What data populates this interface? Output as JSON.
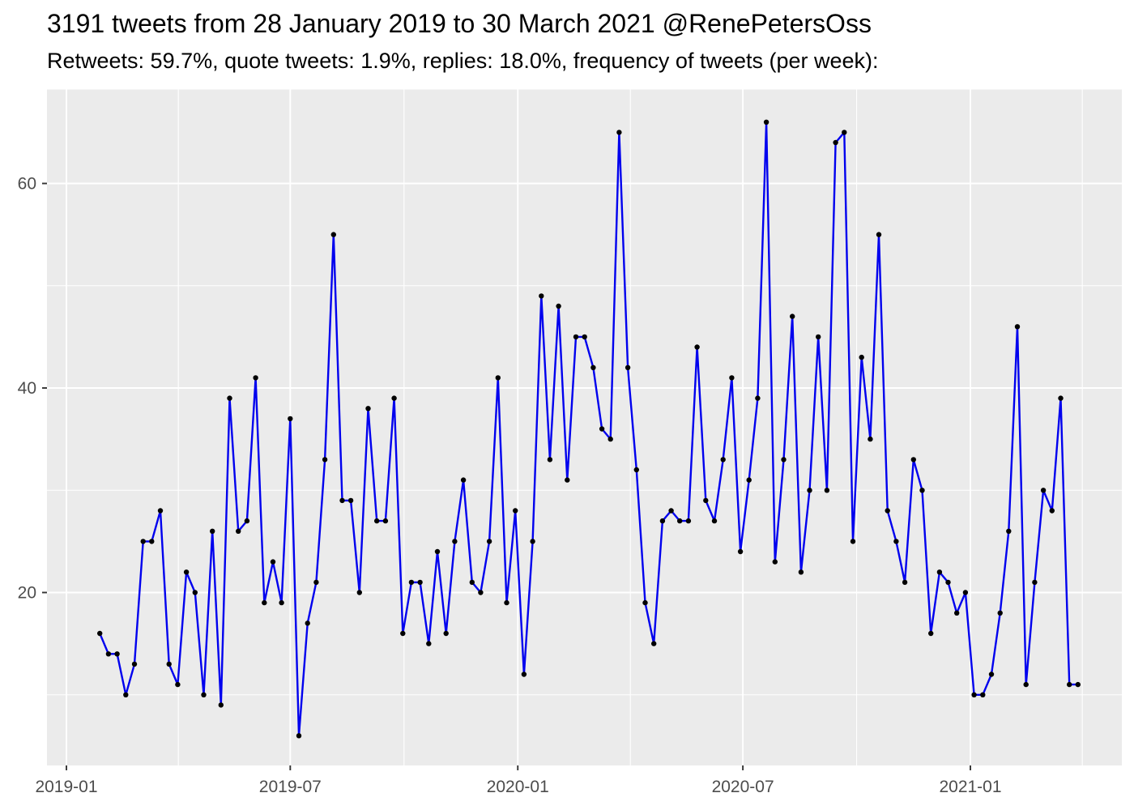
{
  "header": {
    "title": "3191 tweets from 28 January 2019 to 30 March 2021 @RenePetersOss",
    "subtitle": "Retweets: 59.7%, quote tweets: 1.9%, replies: 18.0%, frequency of tweets (per week):"
  },
  "chart_data": {
    "type": "line",
    "title": "3191 tweets from 28 January 2019 to 30 March 2021 @RenePetersOss",
    "subtitle": "Retweets: 59.7%, quote tweets: 1.9%, replies: 18.0%, frequency of tweets (per week):",
    "xlabel": "",
    "ylabel": "",
    "legend": "none",
    "grid": true,
    "series": [
      {
        "name": "tweets-per-week",
        "start_date": "2019-01-28",
        "end_date": "2021-03-29",
        "interval_days": 7,
        "values": [
          16,
          14,
          14,
          10,
          13,
          25,
          25,
          28,
          13,
          11,
          22,
          20,
          10,
          26,
          9,
          39,
          26,
          27,
          41,
          19,
          23,
          19,
          37,
          6,
          17,
          21,
          33,
          55,
          29,
          29,
          20,
          38,
          27,
          27,
          39,
          16,
          21,
          21,
          15,
          24,
          16,
          25,
          31,
          21,
          20,
          25,
          41,
          19,
          28,
          12,
          25,
          49,
          33,
          48,
          31,
          45,
          45,
          42,
          36,
          35,
          65,
          42,
          32,
          19,
          15,
          27,
          28,
          27,
          27,
          44,
          29,
          27,
          33,
          41,
          24,
          31,
          39,
          66,
          23,
          33,
          47,
          22,
          30,
          45,
          30,
          64,
          65,
          25,
          43,
          35,
          55,
          28,
          25,
          21,
          33,
          30,
          16,
          22,
          21,
          18,
          20,
          10,
          10,
          12,
          18,
          26,
          46,
          11,
          21,
          30,
          28,
          39,
          11,
          11
        ]
      }
    ],
    "x_axis": {
      "tick_labels": [
        "2019-01",
        "2019-07",
        "2020-01",
        "2020-07",
        "2021-01"
      ],
      "tick_days_from_2019_01_01": [
        0,
        181,
        365,
        547,
        731
      ],
      "minor_gridline_days": [
        90.5,
        273,
        456,
        639,
        821.5
      ]
    },
    "y_axis": {
      "tick_labels": [
        "20",
        "40",
        "60"
      ],
      "tick_values": [
        20,
        40,
        60
      ],
      "minor_gridline_values": [
        10,
        30,
        50
      ],
      "visible_range": [
        3,
        69
      ]
    },
    "colors": {
      "line": "#0000ee",
      "point": "#000000",
      "panel_background": "#ebebeb",
      "gridline": "#ffffff",
      "axis_text": "#4d4d4d",
      "tick_mark": "#333333",
      "title_text": "#000000"
    }
  }
}
